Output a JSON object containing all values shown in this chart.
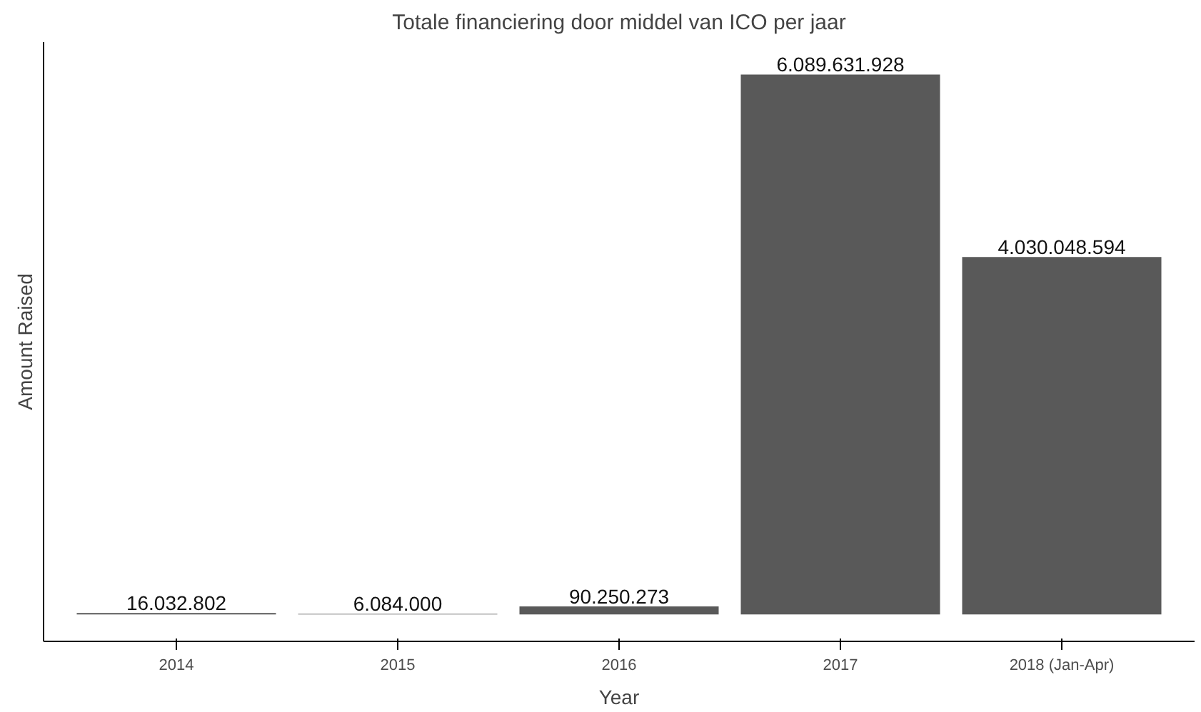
{
  "chart_data": {
    "type": "bar",
    "title": "Totale financiering door middel van ICO per jaar",
    "xlabel": "Year",
    "ylabel": "Amount Raised",
    "categories": [
      "2014",
      "2015",
      "2016",
      "2017",
      "2018 (Jan-Apr)"
    ],
    "values": [
      16032802,
      6084000,
      90250273,
      6089631928,
      4030048594
    ],
    "value_labels": [
      "16.032.802",
      "6.084.000",
      "90.250.273",
      "6.089.631.928",
      "4.030.048.594"
    ],
    "color": "#595959",
    "tick_labels": "x",
    "grid": false
  }
}
